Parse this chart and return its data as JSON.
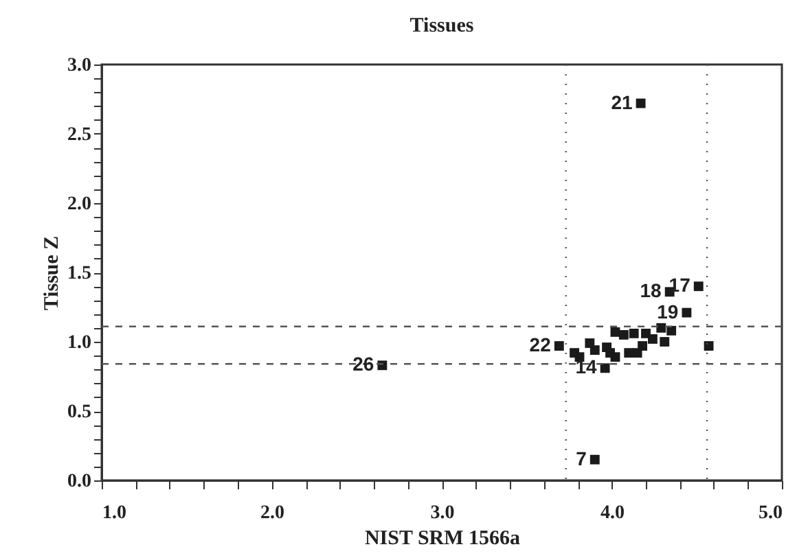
{
  "chart_data": {
    "type": "scatter",
    "title": "Tissues",
    "xlabel": "NIST SRM 1566a",
    "ylabel": "Tissue Z",
    "marker": "square",
    "grid": false,
    "xlim": [
      1,
      5
    ],
    "ylim": [
      0,
      3
    ],
    "xticks": [
      {
        "value": 1,
        "label": "1.0"
      },
      {
        "value": 1.2,
        "label": null
      },
      {
        "value": 1.4,
        "label": null
      },
      {
        "value": 1.6,
        "label": null
      },
      {
        "value": 1.8,
        "label": null
      },
      {
        "value": 2,
        "label": "2.0"
      },
      {
        "value": 2.2,
        "label": null
      },
      {
        "value": 2.4,
        "label": null
      },
      {
        "value": 2.6,
        "label": null
      },
      {
        "value": 2.8,
        "label": null
      },
      {
        "value": 3,
        "label": "3.0"
      },
      {
        "value": 3.2,
        "label": null
      },
      {
        "value": 3.4,
        "label": null
      },
      {
        "value": 3.6,
        "label": null
      },
      {
        "value": 3.8,
        "label": null
      },
      {
        "value": 4,
        "label": "4.0"
      },
      {
        "value": 4.2,
        "label": null
      },
      {
        "value": 4.4,
        "label": null
      },
      {
        "value": 4.6,
        "label": null
      },
      {
        "value": 4.8,
        "label": null
      },
      {
        "value": 5,
        "label": "5.0"
      }
    ],
    "yticks": [
      {
        "value": 0,
        "label": "0.0"
      },
      {
        "value": 0.1,
        "label": null
      },
      {
        "value": 0.2,
        "label": null
      },
      {
        "value": 0.3,
        "label": null
      },
      {
        "value": 0.4,
        "label": null
      },
      {
        "value": 0.5,
        "label": "0.5"
      },
      {
        "value": 0.6,
        "label": null
      },
      {
        "value": 0.7,
        "label": null
      },
      {
        "value": 0.8,
        "label": null
      },
      {
        "value": 0.9,
        "label": null
      },
      {
        "value": 1,
        "label": "1.0"
      },
      {
        "value": 1.1,
        "label": null
      },
      {
        "value": 1.2,
        "label": null
      },
      {
        "value": 1.3,
        "label": null
      },
      {
        "value": 1.4,
        "label": null
      },
      {
        "value": 1.5,
        "label": "1.5"
      },
      {
        "value": 1.6,
        "label": null
      },
      {
        "value": 1.7,
        "label": null
      },
      {
        "value": 1.8,
        "label": null
      },
      {
        "value": 1.9,
        "label": null
      },
      {
        "value": 2,
        "label": "2.0"
      },
      {
        "value": 2.1,
        "label": null
      },
      {
        "value": 2.2,
        "label": null
      },
      {
        "value": 2.3,
        "label": null
      },
      {
        "value": 2.4,
        "label": null
      },
      {
        "value": 2.5,
        "label": "2.5"
      },
      {
        "value": 2.6,
        "label": null
      },
      {
        "value": 2.7,
        "label": null
      },
      {
        "value": 2.8,
        "label": null
      },
      {
        "value": 2.9,
        "label": null
      },
      {
        "value": 3,
        "label": "3.0"
      }
    ],
    "series": [
      {
        "color": "#1a1a1a",
        "x": [
          4.17,
          4.51,
          4.34,
          4.44,
          3.69,
          3.96,
          3.9,
          2.65,
          4.57,
          3.78,
          3.81,
          3.87,
          3.9,
          3.97,
          3.99,
          4.02,
          4.02,
          4.07,
          4.1,
          4.13,
          4.15,
          4.18,
          4.2,
          4.24,
          4.29,
          4.31,
          4.35
        ],
        "values": [
          2.72,
          1.4,
          1.36,
          1.21,
          0.97,
          0.81,
          0.15,
          0.83,
          0.97,
          0.92,
          0.89,
          0.99,
          0.94,
          0.96,
          0.92,
          1.07,
          0.89,
          1.05,
          0.92,
          1.06,
          0.92,
          0.97,
          1.06,
          1.02,
          1.1,
          1.0,
          1.08
        ]
      }
    ],
    "annotations": [
      {
        "text": "21",
        "x": 4.17,
        "y": 2.72
      },
      {
        "text": "17",
        "x": 4.51,
        "y": 1.4
      },
      {
        "text": "18",
        "x": 4.34,
        "y": 1.36
      },
      {
        "text": "19",
        "x": 4.44,
        "y": 1.21
      },
      {
        "text": "22",
        "x": 3.69,
        "y": 0.97
      },
      {
        "text": "14",
        "x": 3.96,
        "y": 0.81
      },
      {
        "text": "7",
        "x": 3.9,
        "y": 0.15
      },
      {
        "text": "26",
        "x": 2.65,
        "y": 0.83
      }
    ],
    "ref_lines": [
      {
        "axis": "x",
        "value": 3.73,
        "line_style": "dotted",
        "color": "#555555"
      },
      {
        "axis": "x",
        "value": 4.56,
        "line_style": "dotted",
        "color": "#555555"
      },
      {
        "axis": "y",
        "value": 1.11,
        "line_style": "dashed",
        "color": "#555555"
      },
      {
        "axis": "y",
        "value": 0.84,
        "line_style": "dashed",
        "color": "#555555"
      }
    ]
  }
}
